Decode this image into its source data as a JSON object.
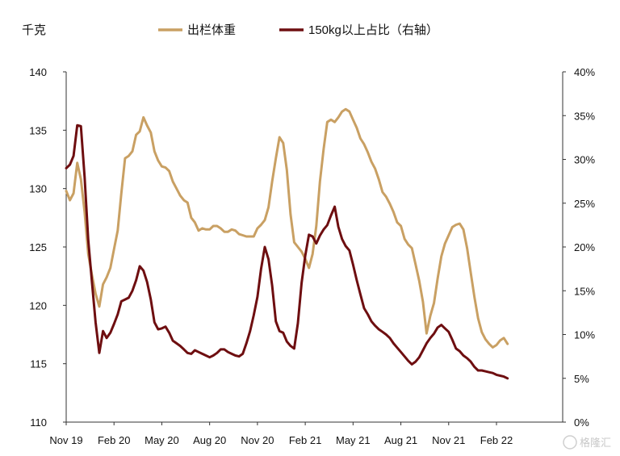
{
  "chart_data": {
    "type": "line",
    "left_unit": "千克",
    "legend_position": "top",
    "grid": false,
    "x_tick_labels": [
      "Nov 19",
      "Feb 20",
      "May 20",
      "Aug 20",
      "Nov 20",
      "Feb 21",
      "May 21",
      "Aug 21",
      "Nov 21",
      "Feb 22"
    ],
    "y_left": {
      "min": 110,
      "max": 140,
      "ticks": [
        "110",
        "115",
        "120",
        "125",
        "130",
        "135",
        "140"
      ]
    },
    "y_right": {
      "min": 0,
      "max": 40,
      "ticks": [
        "0%",
        "5%",
        "10%",
        "15%",
        "20%",
        "25%",
        "30%",
        "35%",
        "40%"
      ]
    },
    "x_range": [
      0,
      135
    ],
    "x_tick_positions": [
      0,
      13,
      26,
      39,
      52,
      65,
      78,
      91,
      104,
      117
    ],
    "series": [
      {
        "name": "出栏体重",
        "axis": "left",
        "color": "#C9A063",
        "x": [
          0,
          1,
          2,
          3,
          4,
          5,
          6,
          7,
          8,
          9,
          10,
          11,
          12,
          13,
          14,
          15,
          16,
          17,
          18,
          19,
          20,
          21,
          22,
          23,
          24,
          25,
          26,
          27,
          28,
          29,
          30,
          31,
          32,
          33,
          34,
          35,
          36,
          37,
          38,
          39,
          40,
          41,
          42,
          43,
          44,
          45,
          46,
          47,
          48,
          49,
          50,
          51,
          52,
          53,
          54,
          55,
          56,
          57,
          58,
          59,
          60,
          61,
          62,
          63,
          64,
          65,
          66,
          67,
          68,
          69,
          70,
          71,
          72,
          73,
          74,
          75,
          76,
          77,
          78,
          79,
          80,
          81,
          82,
          83,
          84,
          85,
          86,
          87,
          88,
          89,
          90,
          91,
          92,
          93,
          94,
          95,
          96,
          97,
          98,
          99,
          100,
          101,
          102,
          103,
          104,
          105,
          106,
          107,
          108,
          109,
          110,
          111,
          112,
          113,
          114,
          115,
          116,
          117,
          118,
          119,
          120
        ],
        "values": [
          129.8,
          129.0,
          129.6,
          132.2,
          130.8,
          128.0,
          124.4,
          122.6,
          121.0,
          119.9,
          121.8,
          122.4,
          123.2,
          124.8,
          126.4,
          129.6,
          132.6,
          132.8,
          133.2,
          134.6,
          134.9,
          136.1,
          135.4,
          134.8,
          133.2,
          132.4,
          131.9,
          131.8,
          131.5,
          130.6,
          130.0,
          129.4,
          129.0,
          128.8,
          127.5,
          127.1,
          126.4,
          126.6,
          126.5,
          126.5,
          126.8,
          126.8,
          126.6,
          126.3,
          126.3,
          126.5,
          126.4,
          126.1,
          126.0,
          125.9,
          125.9,
          125.9,
          126.6,
          126.9,
          127.3,
          128.4,
          130.6,
          132.6,
          134.4,
          133.9,
          131.6,
          127.8,
          125.4,
          125.0,
          124.6,
          124.0,
          123.2,
          124.4,
          126.8,
          130.6,
          133.4,
          135.7,
          135.9,
          135.7,
          136.1,
          136.6,
          136.8,
          136.6,
          135.9,
          135.2,
          134.3,
          133.8,
          133.1,
          132.3,
          131.7,
          130.8,
          129.7,
          129.3,
          128.7,
          128.0,
          127.1,
          126.8,
          125.7,
          125.2,
          124.9,
          123.5,
          122.1,
          120.3,
          117.6,
          119.1,
          120.2,
          122.3,
          124.2,
          125.3,
          126.0,
          126.7,
          126.9,
          127.0,
          126.5,
          124.9,
          122.8,
          120.7,
          118.9,
          117.7,
          117.1,
          116.7,
          116.4,
          116.6,
          117.0,
          117.2,
          116.7
        ]
      },
      {
        "name": "150kg以上占比（右轴）",
        "axis": "right",
        "color": "#6E0E10",
        "x": [
          0,
          1,
          2,
          3,
          4,
          5,
          6,
          7,
          8,
          9,
          10,
          11,
          12,
          13,
          14,
          15,
          16,
          17,
          18,
          19,
          20,
          21,
          22,
          23,
          24,
          25,
          26,
          27,
          28,
          29,
          30,
          31,
          32,
          33,
          34,
          35,
          36,
          37,
          38,
          39,
          40,
          41,
          42,
          43,
          44,
          45,
          46,
          47,
          48,
          49,
          50,
          51,
          52,
          53,
          54,
          55,
          56,
          57,
          58,
          59,
          60,
          61,
          62,
          63,
          64,
          65,
          66,
          67,
          68,
          69,
          70,
          71,
          72,
          73,
          74,
          75,
          76,
          77,
          78,
          79,
          80,
          81,
          82,
          83,
          84,
          85,
          86,
          87,
          88,
          89,
          90,
          91,
          92,
          93,
          94,
          95,
          96,
          97,
          98,
          99,
          100,
          101,
          102,
          103,
          104,
          105,
          106,
          107,
          108,
          109,
          110,
          111,
          112,
          113,
          114,
          115,
          116,
          117,
          118,
          119,
          120
        ],
        "values": [
          29.0,
          29.4,
          30.4,
          33.9,
          33.8,
          28.0,
          20.8,
          16.0,
          11.4,
          7.9,
          10.4,
          9.6,
          10.2,
          11.2,
          12.3,
          13.8,
          14.0,
          14.2,
          15.0,
          16.2,
          17.8,
          17.3,
          16.0,
          14.0,
          11.4,
          10.6,
          10.7,
          10.9,
          10.2,
          9.3,
          9.0,
          8.7,
          8.3,
          7.9,
          7.8,
          8.2,
          8.0,
          7.8,
          7.6,
          7.4,
          7.6,
          7.9,
          8.3,
          8.3,
          8.0,
          7.8,
          7.6,
          7.5,
          7.8,
          9.0,
          10.4,
          12.2,
          14.3,
          17.5,
          20.0,
          18.6,
          15.6,
          11.5,
          10.4,
          10.2,
          9.2,
          8.7,
          8.4,
          11.3,
          15.9,
          19.0,
          21.4,
          21.2,
          20.4,
          21.3,
          22.0,
          22.5,
          23.6,
          24.6,
          22.3,
          20.9,
          20.1,
          19.6,
          18.0,
          16.2,
          14.6,
          13.0,
          12.3,
          11.5,
          11.0,
          10.6,
          10.3,
          10.0,
          9.6,
          9.0,
          8.5,
          8.0,
          7.5,
          7.0,
          6.6,
          6.9,
          7.4,
          8.2,
          9.0,
          9.6,
          10.1,
          10.8,
          11.1,
          10.7,
          10.3,
          9.4,
          8.4,
          8.1,
          7.6,
          7.3,
          6.9,
          6.3,
          5.9,
          5.9,
          5.8,
          5.7,
          5.6,
          5.4,
          5.3,
          5.2,
          5.0
        ]
      }
    ]
  },
  "watermark": "格隆汇"
}
